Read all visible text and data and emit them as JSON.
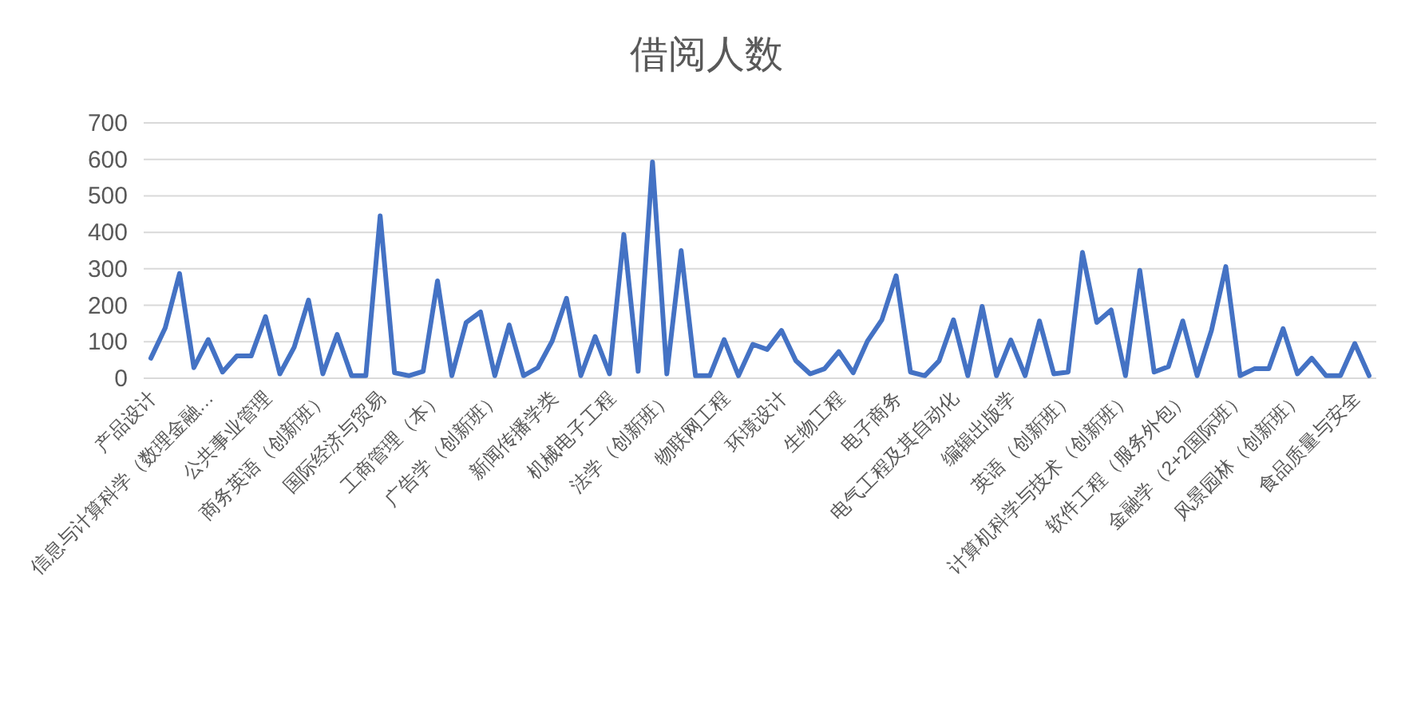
{
  "chart_data": {
    "type": "line",
    "title": "借阅人数",
    "categories": [
      "产品设计",
      null,
      null,
      null,
      "信息与计算科学（数理金融…",
      null,
      null,
      null,
      "公共事业管理",
      null,
      null,
      null,
      "商务英语（创新班）",
      null,
      null,
      null,
      "国际经济与贸易",
      null,
      null,
      null,
      "工商管理（本）",
      null,
      null,
      null,
      "广告学（创新班）",
      null,
      null,
      null,
      "新闻传播学类",
      null,
      null,
      null,
      "机械电子工程",
      null,
      null,
      null,
      "法学（创新班）",
      null,
      null,
      null,
      "物联网工程",
      null,
      null,
      null,
      "环境设计",
      null,
      null,
      null,
      "生物工程",
      null,
      null,
      null,
      "电子商务",
      null,
      null,
      null,
      "电气工程及其自动化",
      null,
      null,
      null,
      "编辑出版学",
      null,
      null,
      null,
      "英语（创新班）",
      null,
      null,
      null,
      "计算机科学与技术（创新班）",
      null,
      null,
      null,
      "软件工程（服务外包）",
      null,
      null,
      null,
      "金融学（2+2国际班）",
      null,
      null,
      null,
      "风景园林（创新班）",
      null,
      null,
      null,
      "食品质量与安全",
      null
    ],
    "series": [
      {
        "color": "#4472c4",
        "values": [
          55,
          138,
          287,
          29,
          106,
          17,
          61,
          61,
          169,
          12,
          85,
          214,
          12,
          120,
          7,
          7,
          445,
          15,
          7,
          19,
          267,
          7,
          153,
          182,
          7,
          146,
          7,
          29,
          102,
          219,
          7,
          114,
          12,
          394,
          19,
          593,
          12,
          350,
          7,
          7,
          106,
          7,
          93,
          79,
          131,
          48,
          12,
          26,
          73,
          15,
          102,
          160,
          281,
          17,
          7,
          48,
          160,
          7,
          197,
          7,
          105,
          7,
          157,
          12,
          17,
          345,
          153,
          187,
          7,
          296,
          17,
          32,
          157,
          7,
          131,
          306,
          7,
          26,
          26,
          136,
          12,
          55,
          7,
          7,
          95,
          7
        ]
      }
    ],
    "ylim": [
      0,
      700
    ],
    "yticks": [
      0,
      100,
      200,
      300,
      400,
      500,
      600,
      700
    ],
    "grid": "y"
  }
}
